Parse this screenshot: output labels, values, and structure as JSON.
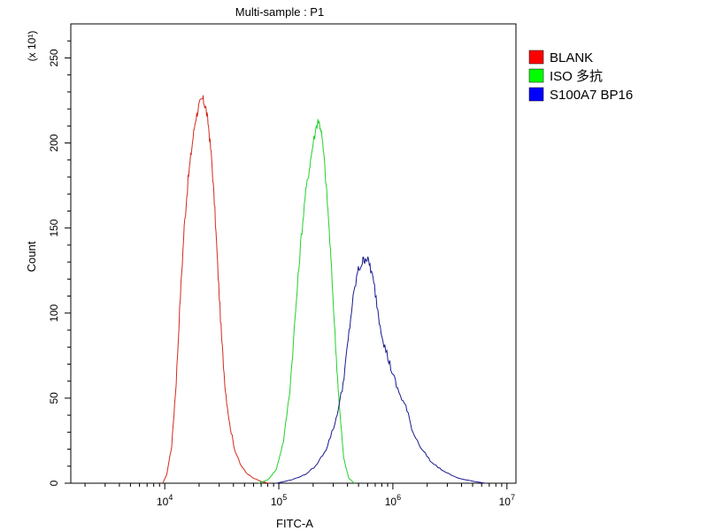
{
  "chart_data": {
    "type": "line",
    "title": "Multi-sample : P1",
    "xlabel": "FITC-A",
    "ylabel": "Count",
    "y_multiplier_label": "(x 10¹)",
    "x_scale": "log",
    "xlim": [
      1500,
      12000000
    ],
    "ylim": [
      0,
      270
    ],
    "x_ticks": [
      {
        "value": 10000,
        "base": "10",
        "exp": "4"
      },
      {
        "value": 100000,
        "base": "10",
        "exp": "5"
      },
      {
        "value": 1000000,
        "base": "10",
        "exp": "6"
      },
      {
        "value": 10000000,
        "base": "10",
        "exp": "7"
      }
    ],
    "y_ticks": [
      {
        "value": 0,
        "label": "0"
      },
      {
        "value": 50,
        "label": "50"
      },
      {
        "value": 100,
        "label": "100"
      },
      {
        "value": 150,
        "label": "150"
      },
      {
        "value": 200,
        "label": "200"
      },
      {
        "value": 250,
        "label": "250"
      }
    ],
    "grid": false,
    "legend_position": "top-right",
    "series": [
      {
        "name": "BLANK",
        "color": "#d42a1e",
        "legend_color": "#ff0000",
        "peak_x": 21500,
        "peak_y": 226,
        "points": [
          [
            9600,
            0
          ],
          [
            10400,
            5
          ],
          [
            11500,
            22
          ],
          [
            12600,
            60
          ],
          [
            13700,
            110
          ],
          [
            14800,
            150
          ],
          [
            16000,
            178
          ],
          [
            17300,
            198
          ],
          [
            18600,
            214
          ],
          [
            20000,
            222
          ],
          [
            21500,
            226
          ],
          [
            22800,
            221
          ],
          [
            24200,
            210
          ],
          [
            25800,
            190
          ],
          [
            27500,
            160
          ],
          [
            29400,
            122
          ],
          [
            31500,
            85
          ],
          [
            34000,
            55
          ],
          [
            37000,
            35
          ],
          [
            41000,
            20
          ],
          [
            46000,
            11
          ],
          [
            52000,
            6
          ],
          [
            60000,
            3
          ],
          [
            70000,
            1
          ],
          [
            82000,
            0
          ]
        ]
      },
      {
        "name": "ISO 多抗",
        "color": "#22d12a",
        "legend_color": "#00ff00",
        "peak_x": 220000,
        "peak_y": 214,
        "points": [
          [
            66000,
            0
          ],
          [
            80000,
            2
          ],
          [
            95000,
            8
          ],
          [
            110000,
            25
          ],
          [
            125000,
            55
          ],
          [
            140000,
            100
          ],
          [
            155000,
            140
          ],
          [
            170000,
            168
          ],
          [
            185000,
            185
          ],
          [
            200000,
            200
          ],
          [
            220000,
            214
          ],
          [
            235000,
            208
          ],
          [
            250000,
            190
          ],
          [
            270000,
            160
          ],
          [
            290000,
            125
          ],
          [
            315000,
            80
          ],
          [
            340000,
            45
          ],
          [
            370000,
            15
          ],
          [
            410000,
            3
          ],
          [
            460000,
            0
          ]
        ]
      },
      {
        "name": "S100A7 BP16",
        "color": "#1a1a8e",
        "legend_color": "#0000ff",
        "peak_x": 580000,
        "peak_y": 133,
        "points": [
          [
            95000,
            0
          ],
          [
            130000,
            2
          ],
          [
            170000,
            5
          ],
          [
            210000,
            10
          ],
          [
            260000,
            20
          ],
          [
            310000,
            35
          ],
          [
            360000,
            55
          ],
          [
            400000,
            80
          ],
          [
            440000,
            105
          ],
          [
            490000,
            124
          ],
          [
            540000,
            130
          ],
          [
            580000,
            133
          ],
          [
            630000,
            128
          ],
          [
            690000,
            115
          ],
          [
            760000,
            96
          ],
          [
            850000,
            80
          ],
          [
            960000,
            68
          ],
          [
            1100000,
            55
          ],
          [
            1300000,
            45
          ],
          [
            1500000,
            30
          ],
          [
            1800000,
            20
          ],
          [
            2200000,
            12
          ],
          [
            2800000,
            7
          ],
          [
            3700000,
            3
          ],
          [
            5200000,
            1
          ],
          [
            6500000,
            0
          ]
        ]
      }
    ]
  }
}
